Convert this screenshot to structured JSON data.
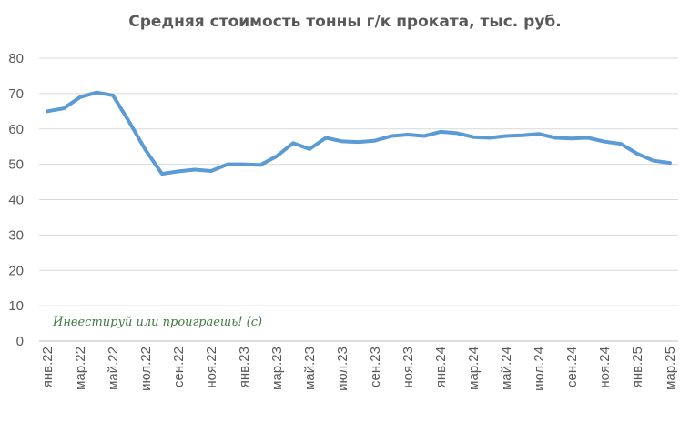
{
  "chart_data": {
    "type": "line",
    "title": "Средняя стоимость тонны г/к проката, тыс. руб.",
    "xlabel": "",
    "ylabel": "",
    "ylim": [
      0,
      80
    ],
    "yticks": [
      0,
      10,
      20,
      30,
      40,
      50,
      60,
      70,
      80
    ],
    "grid": true,
    "legend": "none",
    "line_color": "#5B9BD5",
    "x": [
      "янв.22",
      "фев.22",
      "мар.22",
      "апр.22",
      "май.22",
      "июн.22",
      "июл.22",
      "авг.22",
      "сен.22",
      "окт.22",
      "ноя.22",
      "дек.22",
      "янв.23",
      "фев.23",
      "мар.23",
      "апр.23",
      "май.23",
      "июн.23",
      "июл.23",
      "авг.23",
      "сен.23",
      "окт.23",
      "ноя.23",
      "дек.23",
      "янв.24",
      "фев.24",
      "мар.24",
      "апр.24",
      "май.24",
      "июн.24",
      "июл.24",
      "авг.24",
      "сен.24",
      "окт.24",
      "ноя.24",
      "дек.24",
      "янв.25",
      "фев.25",
      "мар.25"
    ],
    "tick_labels": [
      "янв.22",
      "мар.22",
      "май.22",
      "июл.22",
      "сен.22",
      "ноя.22",
      "янв.23",
      "мар.23",
      "май.23",
      "июл.23",
      "сен.23",
      "ноя.23",
      "янв.24",
      "мар.24",
      "май.24",
      "июл.24",
      "сен.24",
      "ноя.24",
      "янв.25",
      "мар.25"
    ],
    "series": [
      {
        "values": [
          65,
          65.8,
          69,
          70.3,
          69.5,
          62,
          54,
          47.3,
          48,
          48.5,
          48.1,
          50,
          50,
          49.8,
          52.3,
          56,
          54.3,
          57.5,
          56.5,
          56.3,
          56.7,
          58,
          58.4,
          58,
          59.2,
          58.8,
          57.7,
          57.5,
          58,
          58.2,
          58.6,
          57.5,
          57.3,
          57.5,
          56.4,
          55.8,
          53,
          51,
          50.4
        ]
      }
    ]
  },
  "watermark": "Инвестируй или проиграешь! (с)"
}
